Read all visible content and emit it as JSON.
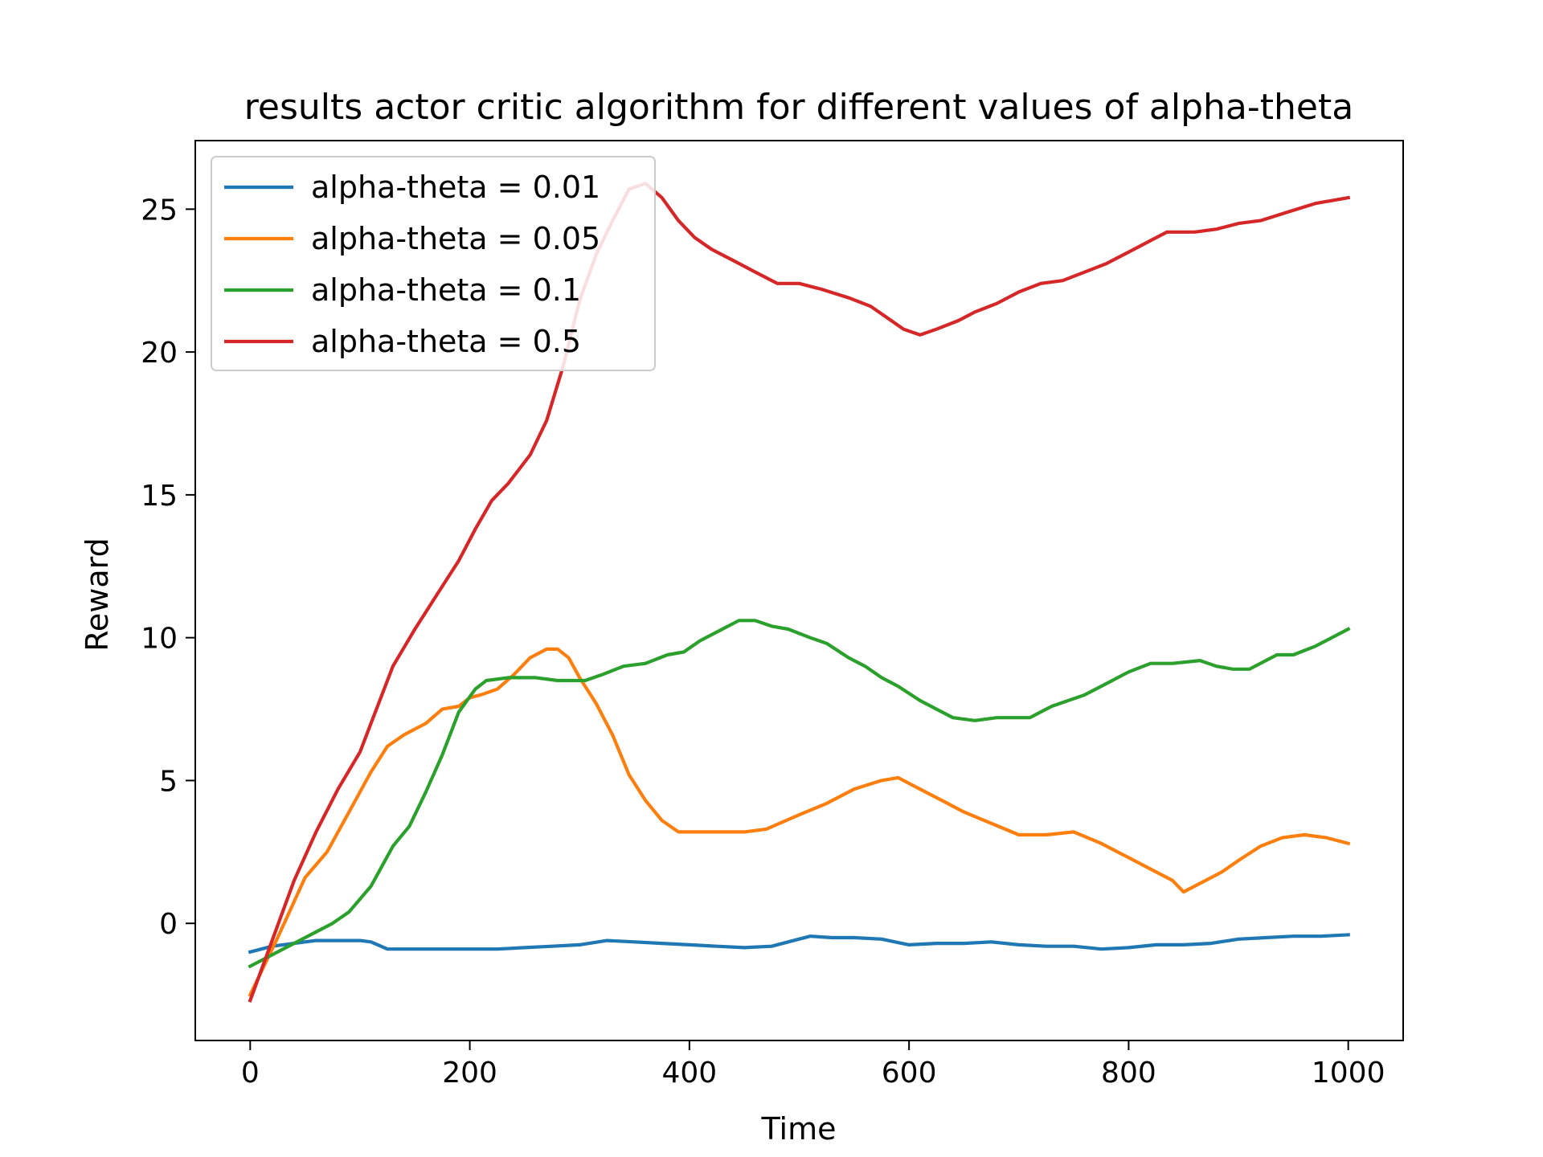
{
  "chart_data": {
    "type": "line",
    "title": "results actor critic algorithm for different values of alpha-theta",
    "xlabel": "Time",
    "ylabel": "Reward",
    "xlim": [
      -50,
      1050
    ],
    "ylim": [
      -4.1,
      27.4
    ],
    "xticks": [
      0,
      200,
      400,
      600,
      800,
      1000
    ],
    "yticks": [
      0,
      5,
      10,
      15,
      20,
      25
    ],
    "grid": false,
    "legend_position": "top-left",
    "series": [
      {
        "name": "alpha-theta = 0.01",
        "color": "#1f77b4",
        "points": [
          [
            0,
            -1.0
          ],
          [
            20,
            -0.8
          ],
          [
            40,
            -0.7
          ],
          [
            60,
            -0.6
          ],
          [
            80,
            -0.6
          ],
          [
            100,
            -0.6
          ],
          [
            110,
            -0.65
          ],
          [
            125,
            -0.9
          ],
          [
            150,
            -0.9
          ],
          [
            175,
            -0.9
          ],
          [
            200,
            -0.9
          ],
          [
            225,
            -0.9
          ],
          [
            250,
            -0.85
          ],
          [
            275,
            -0.8
          ],
          [
            300,
            -0.75
          ],
          [
            325,
            -0.6
          ],
          [
            350,
            -0.65
          ],
          [
            375,
            -0.7
          ],
          [
            400,
            -0.75
          ],
          [
            425,
            -0.8
          ],
          [
            450,
            -0.85
          ],
          [
            475,
            -0.8
          ],
          [
            490,
            -0.65
          ],
          [
            510,
            -0.45
          ],
          [
            530,
            -0.5
          ],
          [
            550,
            -0.5
          ],
          [
            575,
            -0.55
          ],
          [
            600,
            -0.75
          ],
          [
            625,
            -0.7
          ],
          [
            650,
            -0.7
          ],
          [
            675,
            -0.65
          ],
          [
            700,
            -0.75
          ],
          [
            725,
            -0.8
          ],
          [
            750,
            -0.8
          ],
          [
            775,
            -0.9
          ],
          [
            800,
            -0.85
          ],
          [
            825,
            -0.75
          ],
          [
            850,
            -0.75
          ],
          [
            875,
            -0.7
          ],
          [
            900,
            -0.55
          ],
          [
            925,
            -0.5
          ],
          [
            950,
            -0.45
          ],
          [
            975,
            -0.45
          ],
          [
            1000,
            -0.4
          ]
        ]
      },
      {
        "name": "alpha-theta = 0.05",
        "color": "#ff7f0e",
        "points": [
          [
            0,
            -2.5
          ],
          [
            25,
            -0.5
          ],
          [
            50,
            1.6
          ],
          [
            70,
            2.5
          ],
          [
            90,
            3.9
          ],
          [
            110,
            5.3
          ],
          [
            125,
            6.2
          ],
          [
            140,
            6.6
          ],
          [
            160,
            7.0
          ],
          [
            175,
            7.5
          ],
          [
            190,
            7.6
          ],
          [
            200,
            7.9
          ],
          [
            210,
            8.0
          ],
          [
            225,
            8.2
          ],
          [
            240,
            8.7
          ],
          [
            255,
            9.3
          ],
          [
            270,
            9.6
          ],
          [
            280,
            9.6
          ],
          [
            290,
            9.3
          ],
          [
            300,
            8.6
          ],
          [
            315,
            7.7
          ],
          [
            330,
            6.6
          ],
          [
            345,
            5.2
          ],
          [
            360,
            4.3
          ],
          [
            375,
            3.6
          ],
          [
            390,
            3.2
          ],
          [
            420,
            3.2
          ],
          [
            450,
            3.2
          ],
          [
            470,
            3.3
          ],
          [
            500,
            3.8
          ],
          [
            525,
            4.2
          ],
          [
            550,
            4.7
          ],
          [
            575,
            5.0
          ],
          [
            590,
            5.1
          ],
          [
            610,
            4.7
          ],
          [
            630,
            4.3
          ],
          [
            650,
            3.9
          ],
          [
            675,
            3.5
          ],
          [
            700,
            3.1
          ],
          [
            725,
            3.1
          ],
          [
            750,
            3.2
          ],
          [
            775,
            2.8
          ],
          [
            800,
            2.3
          ],
          [
            825,
            1.8
          ],
          [
            840,
            1.5
          ],
          [
            850,
            1.1
          ],
          [
            870,
            1.5
          ],
          [
            885,
            1.8
          ],
          [
            900,
            2.2
          ],
          [
            920,
            2.7
          ],
          [
            940,
            3.0
          ],
          [
            960,
            3.1
          ],
          [
            980,
            3.0
          ],
          [
            1000,
            2.8
          ]
        ]
      },
      {
        "name": "alpha-theta = 0.1",
        "color": "#2ca02c",
        "points": [
          [
            0,
            -1.5
          ],
          [
            25,
            -1.0
          ],
          [
            50,
            -0.5
          ],
          [
            75,
            0.0
          ],
          [
            90,
            0.4
          ],
          [
            110,
            1.3
          ],
          [
            130,
            2.7
          ],
          [
            145,
            3.4
          ],
          [
            160,
            4.6
          ],
          [
            175,
            5.9
          ],
          [
            190,
            7.4
          ],
          [
            205,
            8.2
          ],
          [
            215,
            8.5
          ],
          [
            235,
            8.6
          ],
          [
            260,
            8.6
          ],
          [
            280,
            8.5
          ],
          [
            305,
            8.5
          ],
          [
            320,
            8.7
          ],
          [
            340,
            9.0
          ],
          [
            360,
            9.1
          ],
          [
            380,
            9.4
          ],
          [
            395,
            9.5
          ],
          [
            410,
            9.9
          ],
          [
            430,
            10.3
          ],
          [
            445,
            10.6
          ],
          [
            460,
            10.6
          ],
          [
            475,
            10.4
          ],
          [
            490,
            10.3
          ],
          [
            510,
            10.0
          ],
          [
            525,
            9.8
          ],
          [
            545,
            9.3
          ],
          [
            560,
            9.0
          ],
          [
            575,
            8.6
          ],
          [
            590,
            8.3
          ],
          [
            610,
            7.8
          ],
          [
            625,
            7.5
          ],
          [
            640,
            7.2
          ],
          [
            660,
            7.1
          ],
          [
            680,
            7.2
          ],
          [
            710,
            7.2
          ],
          [
            730,
            7.6
          ],
          [
            760,
            8.0
          ],
          [
            780,
            8.4
          ],
          [
            800,
            8.8
          ],
          [
            820,
            9.1
          ],
          [
            840,
            9.1
          ],
          [
            865,
            9.2
          ],
          [
            880,
            9.0
          ],
          [
            895,
            8.9
          ],
          [
            910,
            8.9
          ],
          [
            925,
            9.2
          ],
          [
            935,
            9.4
          ],
          [
            950,
            9.4
          ],
          [
            970,
            9.7
          ],
          [
            1000,
            10.3
          ]
        ]
      },
      {
        "name": "alpha-theta = 0.5",
        "color": "#d62728",
        "points": [
          [
            0,
            -2.7
          ],
          [
            20,
            -0.6
          ],
          [
            40,
            1.5
          ],
          [
            60,
            3.2
          ],
          [
            80,
            4.7
          ],
          [
            100,
            6.0
          ],
          [
            115,
            7.5
          ],
          [
            130,
            9.0
          ],
          [
            150,
            10.3
          ],
          [
            170,
            11.5
          ],
          [
            190,
            12.7
          ],
          [
            205,
            13.8
          ],
          [
            220,
            14.8
          ],
          [
            235,
            15.4
          ],
          [
            255,
            16.4
          ],
          [
            270,
            17.6
          ],
          [
            285,
            19.5
          ],
          [
            300,
            21.8
          ],
          [
            315,
            23.4
          ],
          [
            330,
            24.6
          ],
          [
            345,
            25.7
          ],
          [
            360,
            25.9
          ],
          [
            375,
            25.4
          ],
          [
            390,
            24.6
          ],
          [
            405,
            24.0
          ],
          [
            420,
            23.6
          ],
          [
            440,
            23.2
          ],
          [
            460,
            22.8
          ],
          [
            480,
            22.4
          ],
          [
            500,
            22.4
          ],
          [
            520,
            22.2
          ],
          [
            545,
            21.9
          ],
          [
            565,
            21.6
          ],
          [
            580,
            21.2
          ],
          [
            595,
            20.8
          ],
          [
            610,
            20.6
          ],
          [
            625,
            20.8
          ],
          [
            645,
            21.1
          ],
          [
            660,
            21.4
          ],
          [
            680,
            21.7
          ],
          [
            700,
            22.1
          ],
          [
            720,
            22.4
          ],
          [
            740,
            22.5
          ],
          [
            760,
            22.8
          ],
          [
            780,
            23.1
          ],
          [
            800,
            23.5
          ],
          [
            820,
            23.9
          ],
          [
            835,
            24.2
          ],
          [
            860,
            24.2
          ],
          [
            880,
            24.3
          ],
          [
            900,
            24.5
          ],
          [
            920,
            24.6
          ],
          [
            945,
            24.9
          ],
          [
            970,
            25.2
          ],
          [
            1000,
            25.4
          ]
        ]
      }
    ]
  }
}
